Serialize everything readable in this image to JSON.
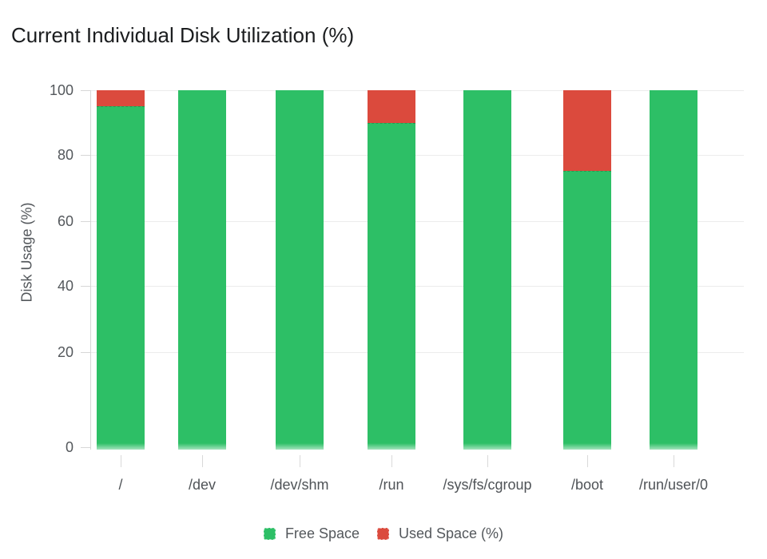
{
  "title": "Current Individual Disk Utilization (%)",
  "colors": {
    "free_space": "#2dbf66",
    "used_space": "#db4a3d",
    "gridline": "#ececec",
    "axis": "#d7d7d7",
    "axis_text": "#54585c",
    "title_text": "#1b1d1f"
  },
  "chart_data": {
    "type": "bar",
    "stacked": true,
    "title": "Current Individual Disk Utilization (%)",
    "xlabel": "",
    "ylabel": "Disk Usage (%)",
    "ylim": [
      0,
      100
    ],
    "yticks": [
      0,
      20,
      40,
      60,
      80,
      100
    ],
    "grid": true,
    "legend_position": "bottom",
    "categories": [
      "/",
      "/dev",
      "/dev/shm",
      "/run",
      "/sys/fs/cgroup",
      "/boot",
      "/run/user/0"
    ],
    "series": [
      {
        "name": "Free Space",
        "color": "#2dbf66",
        "values": [
          95,
          100,
          100,
          90,
          100,
          75,
          100
        ]
      },
      {
        "name": "Used Space (%)",
        "color": "#db4a3d",
        "values": [
          5,
          0,
          0,
          10,
          0,
          25,
          0
        ]
      }
    ]
  }
}
